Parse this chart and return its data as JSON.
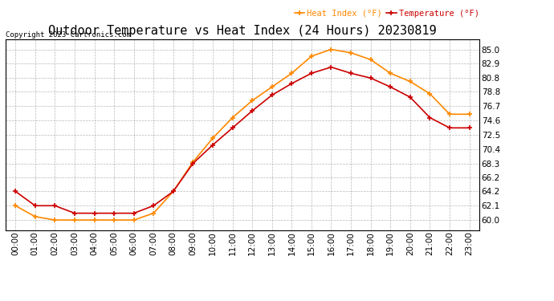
{
  "title": "Outdoor Temperature vs Heat Index (24 Hours) 20230819",
  "copyright": "Copyright 2023 Cartronics.com",
  "legend_heat": "Heat Index (°F)",
  "legend_temp": "Temperature (°F)",
  "hours": [
    "00:00",
    "01:00",
    "02:00",
    "03:00",
    "04:00",
    "05:00",
    "06:00",
    "07:00",
    "08:00",
    "09:00",
    "10:00",
    "11:00",
    "12:00",
    "13:00",
    "14:00",
    "15:00",
    "16:00",
    "17:00",
    "18:00",
    "19:00",
    "20:00",
    "21:00",
    "22:00",
    "23:00"
  ],
  "temperature": [
    64.2,
    62.1,
    62.1,
    61.0,
    61.0,
    61.0,
    61.0,
    62.1,
    64.2,
    68.3,
    71.0,
    73.5,
    76.0,
    78.3,
    80.0,
    81.5,
    82.4,
    81.5,
    80.8,
    79.5,
    78.0,
    75.0,
    73.5,
    73.5
  ],
  "heat_index": [
    62.1,
    60.5,
    60.0,
    60.0,
    60.0,
    60.0,
    60.0,
    61.0,
    64.2,
    68.5,
    72.0,
    75.0,
    77.5,
    79.5,
    81.5,
    84.0,
    85.0,
    84.5,
    83.5,
    81.5,
    80.3,
    78.5,
    75.5,
    75.5
  ],
  "temp_color": "#cc0000",
  "heat_color": "#ff8800",
  "ylim_min": 58.5,
  "ylim_max": 86.5,
  "yticks": [
    60.0,
    62.1,
    64.2,
    66.2,
    68.3,
    70.4,
    72.5,
    74.6,
    76.7,
    78.8,
    80.8,
    82.9,
    85.0
  ],
  "background_color": "#ffffff",
  "grid_color": "#999999",
  "title_fontsize": 11,
  "axis_fontsize": 7.5
}
